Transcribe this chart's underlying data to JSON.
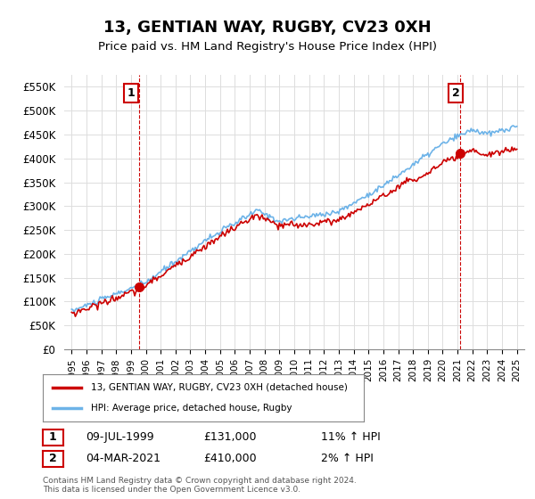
{
  "title": "13, GENTIAN WAY, RUGBY, CV23 0XH",
  "subtitle": "Price paid vs. HM Land Registry's House Price Index (HPI)",
  "legend_line1": "13, GENTIAN WAY, RUGBY, CV23 0XH (detached house)",
  "legend_line2": "HPI: Average price, detached house, Rugby",
  "annotation1_label": "1",
  "annotation1_date": "09-JUL-1999",
  "annotation1_price": "£131,000",
  "annotation1_hpi": "11% ↑ HPI",
  "annotation1_year": 1999.52,
  "annotation1_value": 131000,
  "annotation2_label": "2",
  "annotation2_date": "04-MAR-2021",
  "annotation2_price": "£410,000",
  "annotation2_hpi": "2% ↑ HPI",
  "annotation2_year": 2021.17,
  "annotation2_value": 410000,
  "footer": "Contains HM Land Registry data © Crown copyright and database right 2024.\nThis data is licensed under the Open Government Licence v3.0.",
  "hpi_color": "#6db3e8",
  "price_color": "#cc0000",
  "annotation_color": "#cc0000",
  "background_color": "#ffffff",
  "grid_color": "#dddddd",
  "ylim": [
    0,
    575000
  ],
  "yticks": [
    0,
    50000,
    100000,
    150000,
    200000,
    250000,
    300000,
    350000,
    400000,
    450000,
    500000,
    550000
  ],
  "xlim_start": 1994.5,
  "xlim_end": 2025.5,
  "xticks": [
    1995,
    1996,
    1997,
    1998,
    1999,
    2000,
    2001,
    2002,
    2003,
    2004,
    2005,
    2006,
    2007,
    2008,
    2009,
    2010,
    2011,
    2012,
    2013,
    2014,
    2015,
    2016,
    2017,
    2018,
    2019,
    2020,
    2021,
    2022,
    2023,
    2024,
    2025
  ]
}
